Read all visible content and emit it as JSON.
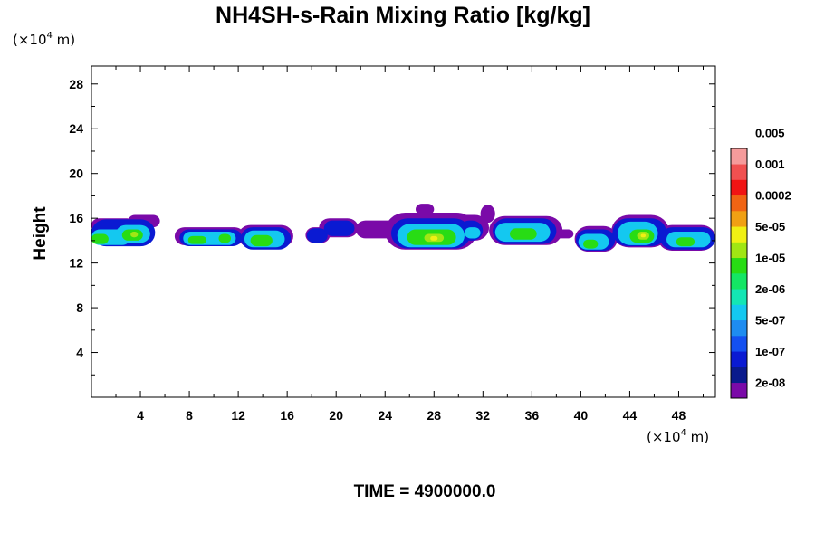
{
  "chart_data": {
    "type": "contour-fill",
    "title": "NH4SH-s-Rain Mixing Ratio [kg/kg]",
    "ylabel": "Height",
    "x_unit_prefix": "(×10",
    "x_unit_exp": "4",
    "x_unit_suffix": " m)",
    "y_unit_prefix": "(×10",
    "y_unit_exp": "4",
    "y_unit_suffix": " m)",
    "xlim": [
      0,
      51
    ],
    "ylim": [
      0,
      29.6
    ],
    "x_ticks": [
      "4",
      "8",
      "12",
      "16",
      "20",
      "24",
      "28",
      "32",
      "36",
      "40",
      "44",
      "48"
    ],
    "y_ticks": [
      "4",
      "8",
      "12",
      "16",
      "20",
      "24",
      "28"
    ],
    "time_label": "TIME = 4900000.0",
    "colorbar": {
      "colors": [
        "#7a0aa8",
        "#0a1a8c",
        "#0a1ad2",
        "#1450f0",
        "#1e8cf0",
        "#14c8f0",
        "#14e6b4",
        "#14e664",
        "#28dc14",
        "#a0e614",
        "#f0f014",
        "#f0a014",
        "#f06414",
        "#f01414",
        "#f05050",
        "#f59b9b"
      ],
      "labels": [
        "2e-08",
        "1e-07",
        "5e-07",
        "2e-06",
        "1e-05",
        "5e-05",
        "0.0002",
        "0.001",
        "0.005"
      ]
    },
    "cloud_layers": [
      {
        "color": "#7a0aa8",
        "blobs": [
          [
            0,
            3.5,
            14.8,
            16.0
          ],
          [
            3.0,
            5.6,
            15.2,
            16.3
          ],
          [
            6.8,
            12.5,
            13.6,
            15.2
          ],
          [
            12.0,
            16.5,
            13.4,
            15.4
          ],
          [
            17.5,
            19.5,
            13.8,
            15.2
          ],
          [
            18.6,
            21.8,
            14.3,
            16.0
          ],
          [
            21.6,
            25.0,
            14.2,
            15.8
          ],
          [
            24.0,
            31.5,
            13.2,
            16.5
          ],
          [
            26.5,
            28.0,
            16.3,
            17.3
          ],
          [
            29.5,
            32.5,
            14.0,
            16.3
          ],
          [
            31.8,
            33.0,
            15.6,
            17.2
          ],
          [
            32.5,
            38.5,
            13.6,
            16.2
          ],
          [
            37.6,
            39.4,
            14.2,
            15.0
          ],
          [
            39.5,
            43.0,
            13.0,
            15.3
          ],
          [
            42.5,
            47.2,
            13.4,
            16.3
          ],
          [
            46.3,
            51.0,
            13.1,
            15.4
          ]
        ]
      },
      {
        "color": "#0a1ad2",
        "blobs": [
          [
            0,
            5.2,
            13.5,
            15.9
          ],
          [
            7.2,
            12.3,
            13.5,
            15.0
          ],
          [
            12.2,
            16.3,
            13.2,
            15.2
          ],
          [
            17.6,
            19.3,
            13.8,
            15.1
          ],
          [
            19.0,
            21.5,
            14.4,
            15.8
          ],
          [
            24.5,
            31.0,
            13.3,
            16.0
          ],
          [
            30.0,
            32.0,
            14.0,
            15.8
          ],
          [
            32.8,
            38.0,
            13.7,
            16.0
          ],
          [
            39.6,
            42.8,
            13.1,
            15.0
          ],
          [
            42.6,
            47.0,
            13.5,
            16.0
          ],
          [
            46.5,
            51.0,
            13.2,
            15.2
          ]
        ]
      },
      {
        "color": "#14c8f0",
        "blobs": [
          [
            0,
            3.2,
            13.6,
            15.0
          ],
          [
            2.0,
            4.8,
            13.8,
            15.4
          ],
          [
            7.5,
            11.8,
            13.6,
            14.8
          ],
          [
            12.5,
            15.8,
            13.4,
            14.9
          ],
          [
            25.0,
            30.5,
            13.4,
            15.5
          ],
          [
            30.5,
            31.8,
            14.2,
            15.2
          ],
          [
            33.0,
            37.5,
            13.9,
            15.6
          ],
          [
            39.8,
            42.3,
            13.2,
            14.6
          ],
          [
            43.0,
            46.3,
            13.6,
            15.7
          ],
          [
            47.0,
            50.6,
            13.4,
            14.8
          ]
        ]
      },
      {
        "color": "#28dc14",
        "blobs": [
          [
            0,
            1.4,
            13.7,
            14.6
          ],
          [
            2.5,
            4.2,
            14.0,
            15.0
          ],
          [
            7.9,
            9.4,
            13.7,
            14.4
          ],
          [
            10.4,
            11.4,
            13.8,
            14.6
          ],
          [
            13.0,
            14.8,
            13.5,
            14.5
          ],
          [
            25.8,
            29.8,
            13.6,
            15.0
          ],
          [
            34.2,
            36.4,
            14.1,
            15.1
          ],
          [
            40.2,
            41.4,
            13.3,
            14.1
          ],
          [
            44.0,
            46.0,
            13.8,
            15.0
          ],
          [
            47.8,
            49.3,
            13.5,
            14.3
          ]
        ]
      },
      {
        "color": "#a0e614",
        "blobs": [
          [
            27.2,
            28.8,
            13.9,
            14.6
          ],
          [
            44.6,
            45.6,
            14.1,
            14.8
          ],
          [
            3.2,
            3.8,
            14.3,
            14.8
          ]
        ]
      },
      {
        "color": "#f0f014",
        "blobs": [
          [
            27.7,
            28.3,
            14.0,
            14.4
          ],
          [
            44.9,
            45.3,
            14.3,
            14.6
          ]
        ]
      }
    ]
  }
}
